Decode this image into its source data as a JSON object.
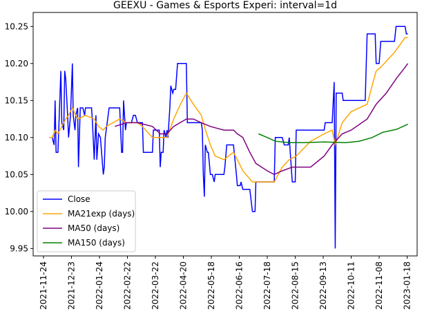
{
  "chart_data": {
    "type": "line",
    "title": "GEEXU - Games & Esports Experi: interval=1d",
    "ylim": [
      9.94,
      10.269
    ],
    "yticks": [
      9.95,
      {
        "value": 10.0,
        "label": "10.00"
      },
      10.05,
      {
        "value": 10.1,
        "label": "10.10"
      },
      10.15,
      {
        "value": 10.2,
        "label": "10.20"
      },
      10.25
    ],
    "xticks": [
      "2021-11-24",
      "2021-12-23",
      "2022-01-24",
      "2022-02-22",
      "2022-03-22",
      "2022-04-20",
      "2022-05-18",
      "2022-06-16",
      "2022-07-18",
      "2022-08-15",
      "2022-09-13",
      "2022-10-11",
      "2022-11-08",
      "2023-01-18"
    ],
    "legend": "lower left",
    "series": [
      {
        "name": "Close",
        "color": "#0000ff",
        "x": [
          "2021-11-30",
          "2021-12-03",
          "2021-12-05",
          "2021-12-06",
          "2021-12-07",
          "2021-12-09",
          "2021-12-12",
          "2021-12-13",
          "2021-12-15",
          "2021-12-16",
          "2021-12-17",
          "2021-12-19",
          "2021-12-20",
          "2021-12-22",
          "2021-12-24",
          "2021-12-25",
          "2021-12-27",
          "2021-12-28",
          "2021-12-30",
          "2021-12-31",
          "2022-01-02",
          "2022-01-05",
          "2022-01-07",
          "2022-01-08",
          "2022-01-15",
          "2022-01-16",
          "2022-01-18",
          "2022-01-20",
          "2022-01-21",
          "2022-01-23",
          "2022-01-25",
          "2022-01-28",
          "2022-01-29",
          "2022-01-30",
          "2022-02-03",
          "2022-02-14",
          "2022-02-16",
          "2022-02-17",
          "2022-02-18",
          "2022-02-20",
          "2022-02-21",
          "2022-02-26",
          "2022-02-28",
          "2022-03-02",
          "2022-03-04",
          "2022-03-09",
          "2022-03-10",
          "2022-03-19",
          "2022-03-20",
          "2022-03-26",
          "2022-03-27",
          "2022-03-28",
          "2022-03-30",
          "2022-03-31",
          "2022-04-02",
          "2022-04-03",
          "2022-04-04",
          "2022-04-06",
          "2022-04-07",
          "2022-04-09",
          "2022-04-10",
          "2022-04-12",
          "2022-04-14",
          "2022-04-23",
          "2022-04-24",
          "2022-05-08",
          "2022-05-09",
          "2022-05-10",
          "2022-05-11",
          "2022-05-12",
          "2022-05-14",
          "2022-05-15",
          "2022-05-17",
          "2022-05-19",
          "2022-05-21",
          "2022-05-22",
          "2022-05-31",
          "2022-06-01",
          "2022-06-03",
          "2022-06-10",
          "2022-06-13",
          "2022-06-14",
          "2022-06-17",
          "2022-06-18",
          "2022-06-20",
          "2022-06-28",
          "2022-07-01",
          "2022-07-04",
          "2022-07-05",
          "2022-07-25",
          "2022-07-26",
          "2022-08-02",
          "2022-08-04",
          "2022-08-08",
          "2022-08-09",
          "2022-08-12",
          "2022-08-15",
          "2022-08-16",
          "2022-09-14",
          "2022-09-15",
          "2022-09-22",
          "2022-09-24",
          "2022-09-25",
          "2022-09-26",
          "2022-10-02",
          "2022-10-03",
          "2022-10-25",
          "2022-10-27",
          "2022-11-04",
          "2022-11-05",
          "2022-11-08",
          "2022-11-12",
          "2022-12-17",
          "2022-12-21",
          "2023-01-13",
          "2023-01-16",
          "2023-01-20"
        ],
        "values": [
          10.1,
          10.1,
          10.09,
          10.15,
          10.08,
          10.08,
          10.19,
          10.12,
          10.11,
          10.19,
          10.18,
          10.13,
          10.1,
          10.13,
          10.2,
          10.13,
          10.11,
          10.13,
          10.14,
          10.06,
          10.14,
          10.14,
          10.13,
          10.14,
          10.14,
          10.12,
          10.07,
          10.13,
          10.07,
          10.105,
          10.1,
          10.05,
          10.06,
          10.1,
          10.14,
          10.14,
          10.08,
          10.08,
          10.15,
          10.11,
          10.12,
          10.12,
          10.13,
          10.13,
          10.12,
          10.12,
          10.08,
          10.08,
          10.11,
          10.11,
          10.06,
          10.08,
          10.08,
          10.11,
          10.1,
          10.11,
          10.1,
          10.14,
          10.17,
          10.16,
          10.165,
          10.165,
          10.2,
          10.2,
          10.12,
          10.12,
          10.11,
          10.05,
          10.02,
          10.09,
          10.08,
          10.08,
          10.05,
          10.05,
          10.04,
          10.05,
          10.05,
          10.06,
          10.09,
          10.09,
          10.05,
          10.035,
          10.035,
          10.04,
          10.03,
          10.03,
          10.0,
          10.0,
          10.04,
          10.04,
          10.1,
          10.1,
          10.09,
          10.09,
          10.1,
          10.04,
          10.04,
          10.11,
          10.11,
          10.12,
          10.12,
          10.175,
          9.95,
          10.16,
          10.16,
          10.15,
          10.15,
          10.24,
          10.24,
          10.2,
          10.2,
          10.23,
          10.23,
          10.25,
          10.25,
          10.24,
          10.24
        ]
      },
      {
        "name": "MA21exp (days)",
        "color": "#ffa500",
        "x": [
          "2021-11-30",
          "2021-12-03",
          "2021-12-06",
          "2021-12-09",
          "2021-12-13",
          "2021-12-17",
          "2021-12-20",
          "2021-12-24",
          "2021-12-28",
          "2021-12-31",
          "2022-01-08",
          "2022-01-18",
          "2022-01-23",
          "2022-01-28",
          "2022-01-31",
          "2022-02-07",
          "2022-02-14",
          "2022-02-21",
          "2022-03-04",
          "2022-03-09",
          "2022-03-19",
          "2022-03-27",
          "2022-04-03",
          "2022-04-10",
          "2022-04-17",
          "2022-04-23",
          "2022-04-30",
          "2022-05-08",
          "2022-05-11",
          "2022-05-17",
          "2022-05-22",
          "2022-05-31",
          "2022-06-10",
          "2022-06-14",
          "2022-06-20",
          "2022-07-01",
          "2022-07-05",
          "2022-07-25",
          "2022-08-02",
          "2022-08-09",
          "2022-08-16",
          "2022-08-31",
          "2022-09-14",
          "2022-09-22",
          "2022-09-25",
          "2022-10-02",
          "2022-10-11",
          "2022-10-27",
          "2022-11-05",
          "2022-11-12",
          "2022-12-17",
          "2023-01-13",
          "2023-01-20"
        ],
        "values": [
          10.1,
          10.1,
          10.11,
          10.105,
          10.115,
          10.125,
          10.13,
          10.14,
          10.13,
          10.125,
          10.13,
          10.125,
          10.115,
          10.11,
          10.115,
          10.12,
          10.125,
          10.12,
          10.12,
          10.115,
          10.1,
          10.1,
          10.1,
          10.125,
          10.145,
          10.16,
          10.145,
          10.13,
          10.115,
          10.09,
          10.075,
          10.07,
          10.08,
          10.07,
          10.055,
          10.04,
          10.04,
          10.04,
          10.06,
          10.07,
          10.075,
          10.095,
          10.105,
          10.11,
          10.09,
          10.12,
          10.135,
          10.145,
          10.19,
          10.195,
          10.215,
          10.235,
          10.235
        ]
      },
      {
        "name": "MA50 (days)",
        "color": "#800080",
        "x": [
          "2022-02-09",
          "2022-02-21",
          "2022-03-04",
          "2022-03-19",
          "2022-03-27",
          "2022-04-03",
          "2022-04-10",
          "2022-04-23",
          "2022-04-30",
          "2022-05-08",
          "2022-05-17",
          "2022-05-31",
          "2022-06-10",
          "2022-06-14",
          "2022-06-20",
          "2022-06-28",
          "2022-07-05",
          "2022-07-18",
          "2022-07-25",
          "2022-08-02",
          "2022-08-12",
          "2022-08-31",
          "2022-09-14",
          "2022-09-22",
          "2022-10-02",
          "2022-10-11",
          "2022-10-27",
          "2022-11-05",
          "2022-11-26",
          "2022-12-22",
          "2023-01-13",
          "2023-01-20"
        ],
        "values": [
          10.115,
          10.12,
          10.12,
          10.115,
          10.105,
          10.105,
          10.115,
          10.125,
          10.125,
          10.12,
          10.115,
          10.11,
          10.11,
          10.105,
          10.1,
          10.08,
          10.065,
          10.055,
          10.05,
          10.055,
          10.06,
          10.06,
          10.075,
          10.09,
          10.105,
          10.11,
          10.125,
          10.145,
          10.16,
          10.18,
          10.195,
          10.2
        ]
      },
      {
        "name": "MA150 (days)",
        "color": "#008000",
        "x": [
          "2022-07-08",
          "2022-07-18",
          "2022-07-26",
          "2022-08-09",
          "2022-08-23",
          "2022-09-14",
          "2022-10-05",
          "2022-10-19",
          "2022-11-01",
          "2022-11-17",
          "2022-12-22",
          "2023-01-20"
        ],
        "values": [
          10.105,
          10.1,
          10.095,
          10.093,
          10.093,
          10.094,
          10.093,
          10.095,
          10.1,
          10.107,
          10.111,
          10.118
        ]
      }
    ]
  }
}
